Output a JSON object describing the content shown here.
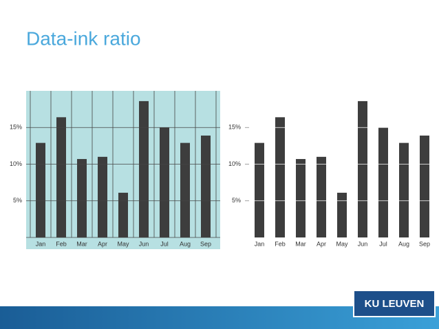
{
  "title": "Data-ink ratio",
  "logo": "KU LEUVEN",
  "chart_data": [
    {
      "type": "bar",
      "categories": [
        "Jan",
        "Feb",
        "Mar",
        "Apr",
        "May",
        "Jun",
        "Jul",
        "Aug",
        "Sep"
      ],
      "values": [
        12.9,
        16.4,
        10.7,
        11,
        6.1,
        18.6,
        15,
        12.9,
        13.9
      ],
      "color": "#3d3d3d",
      "background": "#b7e0e2",
      "grid": true,
      "ylim": [
        0,
        20
      ],
      "yticks": [
        {
          "value": 5,
          "label": "5%"
        },
        {
          "value": 10,
          "label": "10%"
        },
        {
          "value": 15,
          "label": "15%"
        }
      ]
    },
    {
      "type": "bar",
      "categories": [
        "Jan",
        "Feb",
        "Mar",
        "Apr",
        "May",
        "Jun",
        "Jul",
        "Aug",
        "Sep"
      ],
      "values": [
        12.9,
        16.4,
        10.7,
        11,
        6.1,
        18.6,
        15,
        12.9,
        13.9
      ],
      "color": "#3d3d3d",
      "background": "#ffffff",
      "grid": false,
      "ylim": [
        0,
        20
      ],
      "yticks": [
        {
          "value": 5,
          "label": "5%"
        },
        {
          "value": 10,
          "label": "10%"
        },
        {
          "value": 15,
          "label": "15%"
        }
      ]
    }
  ]
}
